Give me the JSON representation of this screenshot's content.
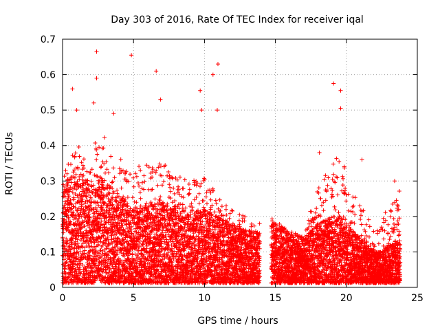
{
  "chart_data": {
    "type": "scatter",
    "title": "Day 303 of 2016, Rate Of TEC Index for receiver iqal",
    "xlabel": "GPS time / hours",
    "ylabel": "ROTI / TECUs",
    "xlim": [
      0,
      25
    ],
    "ylim": [
      0,
      0.7
    ],
    "xticks": [
      0,
      5,
      10,
      15,
      20,
      25
    ],
    "yticks": [
      0,
      0.1,
      0.2,
      0.3,
      0.4,
      0.5,
      0.6,
      0.7
    ],
    "xtick_labels": [
      "0",
      "5",
      "10",
      "15",
      "20",
      "25"
    ],
    "ytick_labels": [
      "0",
      "0.1",
      "0.2",
      "0.3",
      "0.4",
      "0.5",
      "0.6",
      "0.7"
    ],
    "grid": true,
    "marker": "+",
    "color": "#ff0000",
    "data_gap_hours": [
      13.9,
      14.7
    ],
    "series": [
      {
        "name": "ROTI",
        "envelope_hours": [
          0,
          1,
          2,
          2.5,
          3,
          4,
          5,
          6,
          7,
          8,
          9,
          10,
          11,
          12,
          13,
          13.9,
          14.7,
          15,
          16,
          17,
          18,
          19,
          19.5,
          20,
          21,
          22,
          22.5,
          23,
          23.8
        ],
        "envelope_median": [
          0.15,
          0.16,
          0.15,
          0.16,
          0.15,
          0.13,
          0.11,
          0.12,
          0.12,
          0.11,
          0.11,
          0.11,
          0.1,
          0.09,
          0.08,
          0.08,
          0.09,
          0.09,
          0.08,
          0.07,
          0.09,
          0.1,
          0.1,
          0.09,
          0.07,
          0.05,
          0.05,
          0.06,
          0.07
        ],
        "envelope_max": [
          0.32,
          0.4,
          0.38,
          0.45,
          0.42,
          0.38,
          0.33,
          0.36,
          0.36,
          0.32,
          0.3,
          0.32,
          0.25,
          0.22,
          0.2,
          0.2,
          0.2,
          0.19,
          0.16,
          0.15,
          0.3,
          0.35,
          0.4,
          0.32,
          0.25,
          0.15,
          0.22,
          0.22,
          0.28
        ],
        "outliers": [
          {
            "x": 0.7,
            "y": 0.56
          },
          {
            "x": 1.0,
            "y": 0.5
          },
          {
            "x": 2.4,
            "y": 0.665
          },
          {
            "x": 2.4,
            "y": 0.59
          },
          {
            "x": 2.2,
            "y": 0.52
          },
          {
            "x": 3.6,
            "y": 0.49
          },
          {
            "x": 4.85,
            "y": 0.655
          },
          {
            "x": 6.6,
            "y": 0.61
          },
          {
            "x": 6.9,
            "y": 0.53
          },
          {
            "x": 9.7,
            "y": 0.555
          },
          {
            "x": 10.6,
            "y": 0.6
          },
          {
            "x": 10.95,
            "y": 0.63
          },
          {
            "x": 10.9,
            "y": 0.5
          },
          {
            "x": 9.8,
            "y": 0.5
          },
          {
            "x": 19.1,
            "y": 0.575
          },
          {
            "x": 19.6,
            "y": 0.555
          },
          {
            "x": 19.6,
            "y": 0.505
          },
          {
            "x": 18.1,
            "y": 0.38
          },
          {
            "x": 21.1,
            "y": 0.36
          },
          {
            "x": 23.4,
            "y": 0.3
          }
        ]
      }
    ]
  }
}
